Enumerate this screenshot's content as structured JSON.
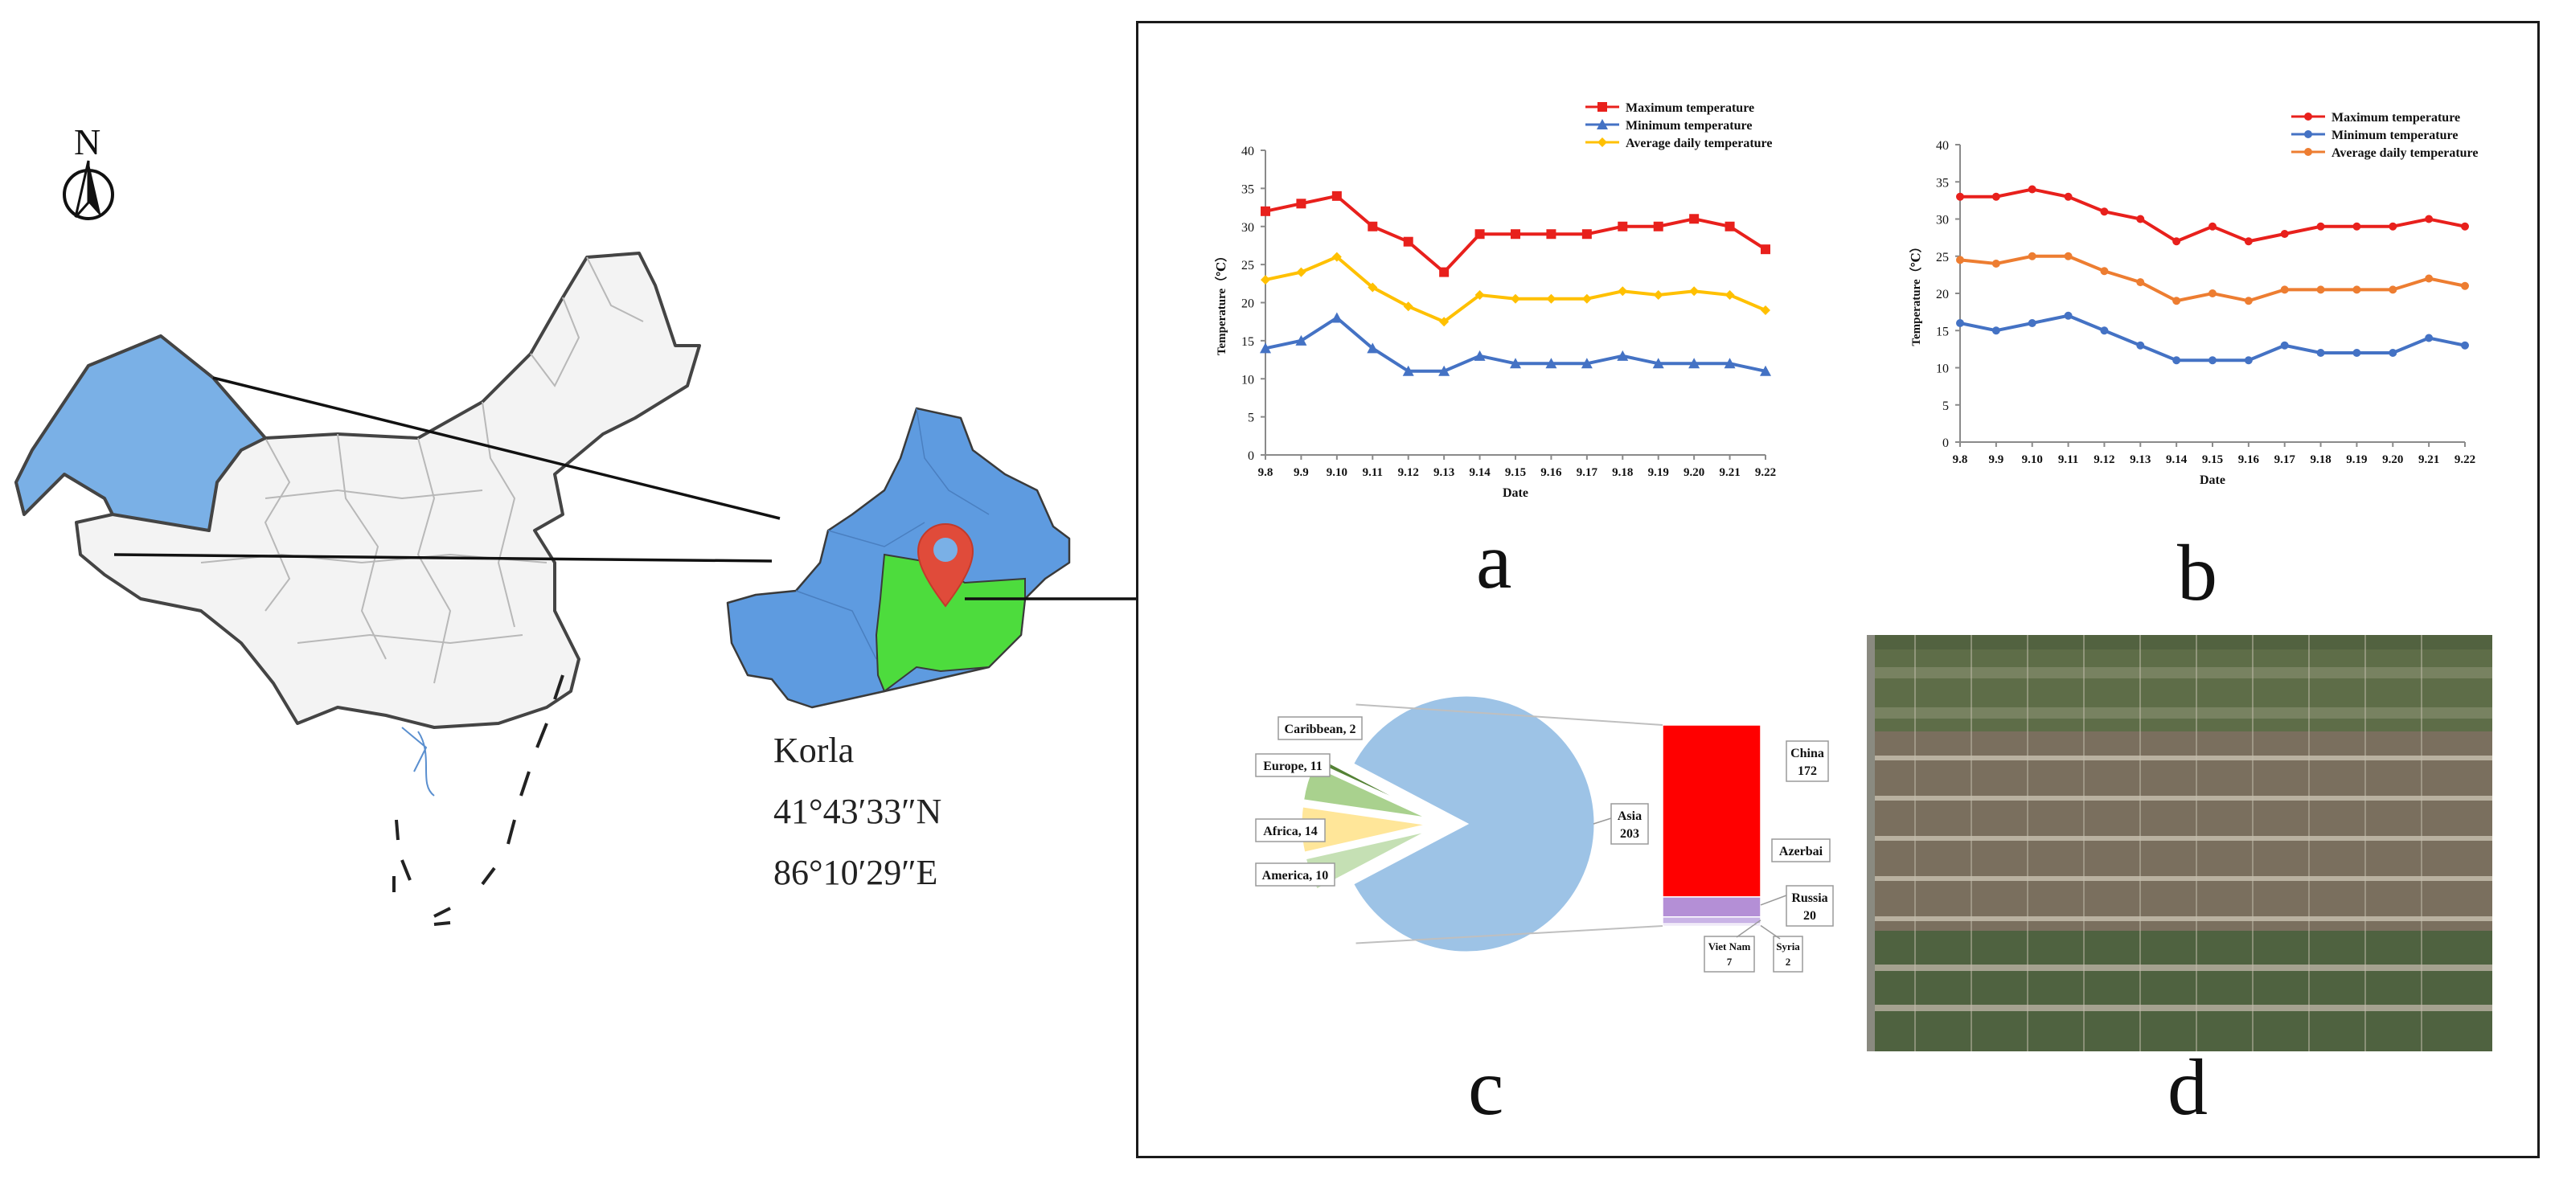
{
  "map": {
    "north_label": "N",
    "site_name": "Korla",
    "latitude": "41°43′33″N",
    "longitude": "86°10′29″E",
    "colors": {
      "region": "#7ab0e6",
      "xinjiang": "#5e9be0",
      "study_area": "#4ddc3d",
      "pin": "#e04b3a"
    }
  },
  "panels": {
    "a": "a",
    "b": "b",
    "c": "c",
    "d": "d"
  },
  "chart_data": [
    {
      "id": "a",
      "type": "line",
      "categories": [
        "9.8",
        "9.9",
        "9.10",
        "9.11",
        "9.12",
        "9.13",
        "9.14",
        "9.15",
        "9.16",
        "9.17",
        "9.18",
        "9.19",
        "9.20",
        "9.21",
        "9.22"
      ],
      "xlabel": "Date",
      "ylabel": "Temperature（℃）",
      "ylim": [
        0,
        40
      ],
      "yticks": [
        0,
        5,
        10,
        15,
        20,
        25,
        30,
        35,
        40
      ],
      "legend_position": "top-right",
      "series": [
        {
          "name": "Maximum temperature",
          "color": "#e8201c",
          "marker": "square",
          "values": [
            32,
            33,
            34,
            30,
            28,
            24,
            29,
            29,
            29,
            29,
            30,
            30,
            31,
            30,
            27
          ]
        },
        {
          "name": "Minimum temperature",
          "color": "#4472c4",
          "marker": "triangle",
          "values": [
            14,
            15,
            18,
            14,
            11,
            11,
            13,
            12,
            12,
            12,
            13,
            12,
            12,
            12,
            11
          ]
        },
        {
          "name": "Average daily temperature",
          "color": "#ffc000",
          "marker": "diamond",
          "values": [
            23,
            24,
            26,
            22,
            19.5,
            17.5,
            21,
            20.5,
            20.5,
            20.5,
            21.5,
            21,
            21.5,
            21,
            19
          ]
        }
      ]
    },
    {
      "id": "b",
      "type": "line",
      "categories": [
        "9.8",
        "9.9",
        "9.10",
        "9.11",
        "9.12",
        "9.13",
        "9.14",
        "9.15",
        "9.16",
        "9.17",
        "9.18",
        "9.19",
        "9.20",
        "9.21",
        "9.22"
      ],
      "xlabel": "Date",
      "ylabel": "Temperature（℃）",
      "ylim": [
        0,
        40
      ],
      "yticks": [
        0,
        5,
        10,
        15,
        20,
        25,
        30,
        35,
        40
      ],
      "legend_position": "top-right",
      "series": [
        {
          "name": "Maximum temperature",
          "color": "#e8201c",
          "marker": "circle",
          "values": [
            33,
            33,
            34,
            33,
            31,
            30,
            27,
            29,
            27,
            28,
            29,
            29,
            29,
            30,
            29
          ]
        },
        {
          "name": "Minimum temperature",
          "color": "#4472c4",
          "marker": "circle",
          "values": [
            16,
            15,
            16,
            17,
            15,
            13,
            11,
            11,
            11,
            13,
            12,
            12,
            12,
            14,
            13
          ]
        },
        {
          "name": "Average daily temperature",
          "color": "#ed7d31",
          "marker": "circle",
          "values": [
            24.5,
            24,
            25,
            25,
            23,
            21.5,
            19,
            20,
            19,
            20.5,
            20.5,
            20.5,
            20.5,
            22,
            21
          ]
        }
      ]
    },
    {
      "id": "c",
      "type": "pie",
      "subtype": "bar-of-pie",
      "slices": [
        {
          "name": "Asia",
          "value": 203,
          "label": "Asia\n203",
          "color": "#9dc3e6"
        },
        {
          "name": "America",
          "value": 10,
          "label": "America, 10",
          "color": "#c5e0b4"
        },
        {
          "name": "Africa",
          "value": 14,
          "label": "Africa, 14",
          "color": "#ffe699"
        },
        {
          "name": "Europe",
          "value": 11,
          "label": "Europe, 11",
          "color": "#a9d18e"
        },
        {
          "name": "Caribbean",
          "value": 2,
          "label": "Caribbean, 2",
          "color": "#548235"
        }
      ],
      "breakdown_of": "Asia",
      "breakdown": [
        {
          "name": "China",
          "value": 172,
          "color": "#ff0000",
          "labels": [
            "China",
            "172"
          ]
        },
        {
          "name": "Azerbai",
          "value": 0,
          "color": "#ff0000",
          "labels": [
            "Azerbai"
          ]
        },
        {
          "name": "Russia",
          "value": 20,
          "color": "#b48fd6",
          "labels": [
            "Russia",
            "20"
          ]
        },
        {
          "name": "Viet Nam",
          "value": 7,
          "color": "#c9b3e6",
          "labels": [
            "Viet Nam",
            "7"
          ]
        },
        {
          "name": "Syria",
          "value": 2,
          "color": "#ddd0f0",
          "labels": [
            "Syria",
            "2"
          ]
        }
      ]
    }
  ]
}
